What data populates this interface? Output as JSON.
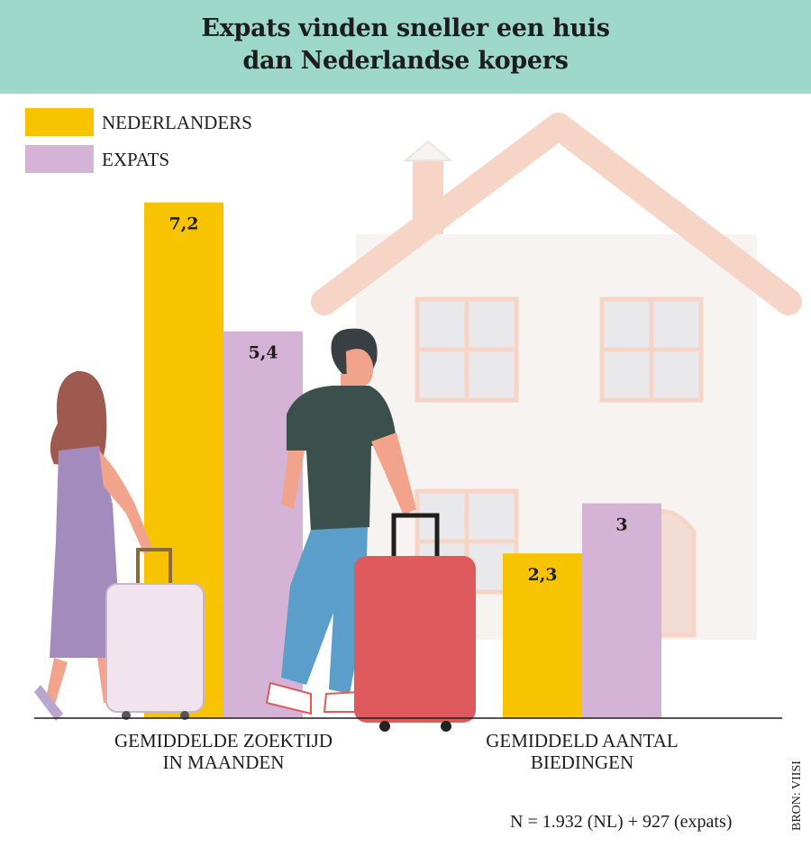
{
  "header": {
    "title_line1": "Expats vinden sneller een huis",
    "title_line2": "dan Nederlandse kopers"
  },
  "legend": [
    {
      "label": "NEDERLANDERS",
      "color": "#f8c300"
    },
    {
      "label": "EXPATS",
      "color": "#d5b3d6"
    }
  ],
  "chart_data": {
    "type": "bar",
    "categories": [
      "GEMIDDELDE ZOEKTIJD IN MAANDEN",
      "GEMIDDELD AANTAL BIEDINGEN"
    ],
    "category_lines": [
      [
        "GEMIDDELDE ZOEKTIJD",
        "IN MAANDEN"
      ],
      [
        "GEMIDDELD AANTAL",
        "BIEDINGEN"
      ]
    ],
    "series": [
      {
        "name": "NEDERLANDERS",
        "values": [
          7.2,
          2.3
        ],
        "labels": [
          "7,2",
          "2,3"
        ],
        "color": "#f8c300"
      },
      {
        "name": "EXPATS",
        "values": [
          5.4,
          3
        ],
        "labels": [
          "5,4",
          "3"
        ],
        "color": "#d5b3d6"
      }
    ],
    "legend_position": "top-left",
    "grid": false
  },
  "footnote": "N = 1.932 (NL) + 927 (expats)",
  "source": "BRON: VIISI"
}
